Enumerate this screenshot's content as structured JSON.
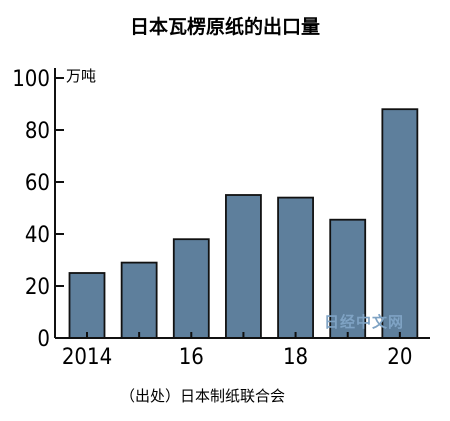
{
  "chart_data": {
    "type": "bar",
    "title": "日本瓦楞原纸的出口量",
    "unit_label": "万吨",
    "categories": [
      "2014",
      "2015",
      "16",
      "2017",
      "18",
      "2019",
      "20"
    ],
    "x_tick_labels": [
      "2014",
      "",
      "16",
      "",
      "18",
      "",
      "20"
    ],
    "values": [
      25,
      29,
      38,
      55,
      54,
      45.5,
      88
    ],
    "ylim": [
      0,
      100
    ],
    "yticks": [
      "0",
      "20",
      "40",
      "60",
      "80",
      "100"
    ],
    "bar_color": "#5e7f9c",
    "grid": false,
    "source": "（出处）日本制纸联合会"
  },
  "watermark": "日经中文网"
}
